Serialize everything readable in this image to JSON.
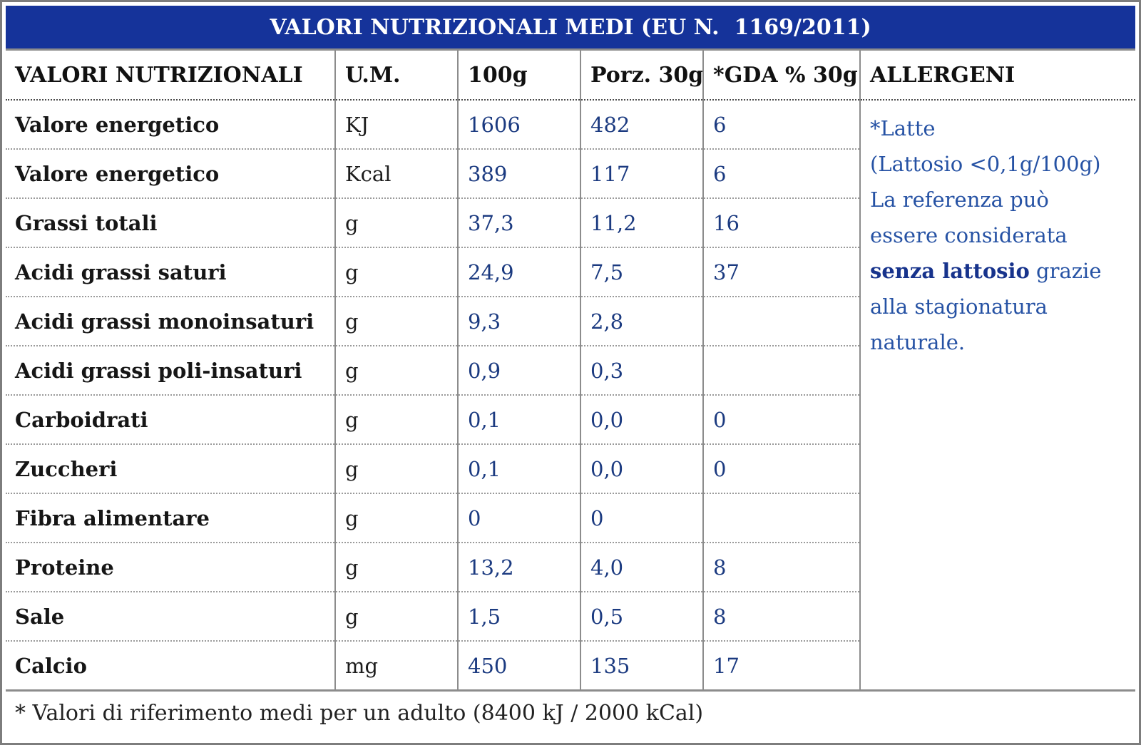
{
  "title": "VALORI NUTRIZIONALI MEDI (EU N.  1169/2011)",
  "columns": [
    "VALORI NUTRIZIONALI",
    "U.M.",
    "100g",
    "Porz. 30g",
    "*GDA % 30g",
    "ALLERGENI"
  ],
  "rows": [
    {
      "label": "Valore energetico",
      "um": "KJ",
      "per100": "1606",
      "porz": "482",
      "gda": "6"
    },
    {
      "label": "Valore energetico",
      "um": "Kcal",
      "per100": "389",
      "porz": "117",
      "gda": "6"
    },
    {
      "label": "Grassi totali",
      "um": "g",
      "per100": "37,3",
      "porz": "11,2",
      "gda": "16"
    },
    {
      "label": "Acidi grassi saturi",
      "um": "g",
      "per100": "24,9",
      "porz": "7,5",
      "gda": "37"
    },
    {
      "label": "Acidi grassi monoinsaturi",
      "um": "g",
      "per100": "9,3",
      "porz": "2,8",
      "gda": ""
    },
    {
      "label": "Acidi grassi poli-insaturi",
      "um": "g",
      "per100": "0,9",
      "porz": "0,3",
      "gda": ""
    },
    {
      "label": "Carboidrati",
      "um": "g",
      "per100": "0,1",
      "porz": "0,0",
      "gda": "0"
    },
    {
      "label": "Zuccheri",
      "um": "g",
      "per100": "0,1",
      "porz": "0,0",
      "gda": "0"
    },
    {
      "label": "Fibra alimentare",
      "um": "g",
      "per100": "0",
      "porz": "0",
      "gda": ""
    },
    {
      "label": "Proteine",
      "um": "g",
      "per100": "13,2",
      "porz": "4,0",
      "gda": "8"
    },
    {
      "label": "Sale",
      "um": "g",
      "per100": "1,5",
      "porz": "0,5",
      "gda": "8"
    },
    {
      "label": "Calcio",
      "um": "mg",
      "per100": "450",
      "porz": "135",
      "gda": "17"
    }
  ],
  "allergens": {
    "lines": [
      [
        {
          "text": "*Latte",
          "bold": false
        }
      ],
      [
        {
          "text": "(Lattosio <0,1g/100g)",
          "bold": false
        }
      ],
      [
        {
          "text": "La referenza può",
          "bold": false
        }
      ],
      [
        {
          "text": "essere considerata",
          "bold": false
        }
      ],
      [
        {
          "text": "senza lattosio",
          "bold": true
        },
        {
          "text": " grazie",
          "bold": false
        }
      ],
      [
        {
          "text": "alla stagionatura",
          "bold": false
        }
      ],
      [
        {
          "text": "naturale.",
          "bold": false
        }
      ]
    ]
  },
  "footnote": "* Valori di riferimento medi per un adulto (8400 kJ / 2000 kCal)",
  "colors": {
    "header_bg": "#15339A",
    "header_text": "#FFFFFF",
    "label_text": "#161616",
    "unit_text": "#1C1C1C",
    "value_text": "#1B3A80",
    "allergen_text": "#2652A4",
    "allergen_bold_text": "#17338C",
    "footnote_text": "#222222",
    "border_outer": "#7D7D7D",
    "border_vertical": "#8C8C8C",
    "row_dotted": "#9A9A9A",
    "header_dotted": "#4A4A4A"
  }
}
